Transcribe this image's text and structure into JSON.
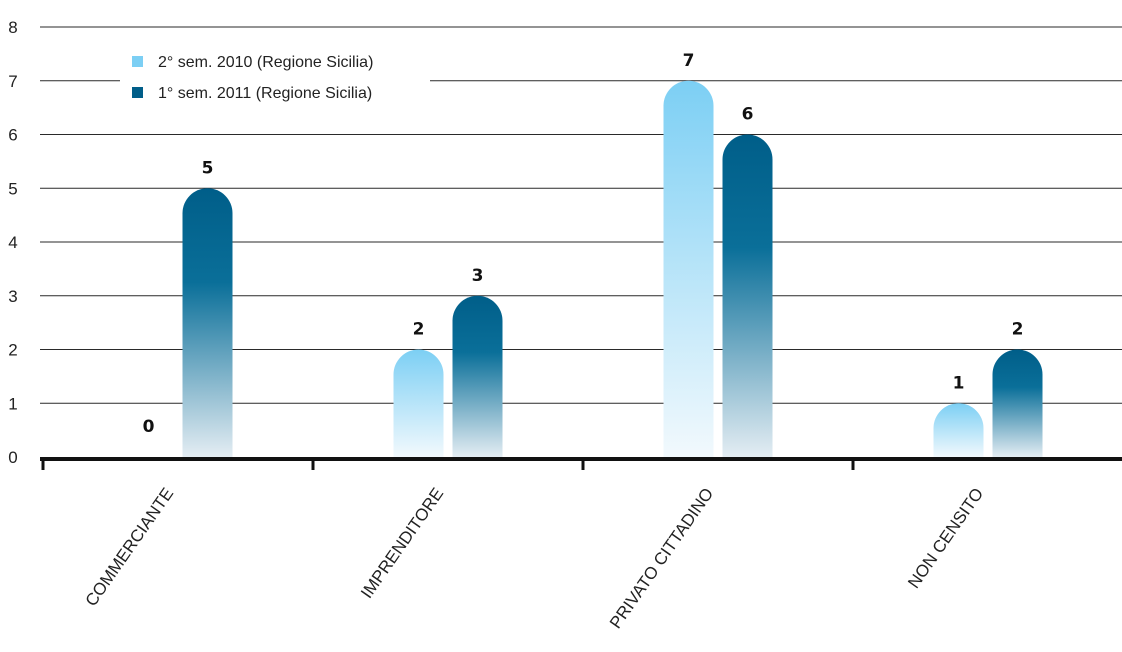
{
  "chart_data": {
    "type": "bar",
    "categories": [
      "COMMERCIANTE",
      "IMPRENDITORE",
      "PRIVATO CITTADINO",
      "NON CENSITO"
    ],
    "series": [
      {
        "name": "2° sem. 2010 (Regione Sicilia)",
        "values": [
          0,
          2,
          7,
          1
        ],
        "color": "#7ccff4"
      },
      {
        "name": "1° sem. 2011 (Regione Sicilia)",
        "values": [
          5,
          3,
          6,
          2
        ],
        "color": "#005e89"
      }
    ],
    "yticks": [
      "0",
      "1",
      "2",
      "3",
      "4",
      "5",
      "6",
      "7",
      "8"
    ],
    "ylim": [
      0,
      8
    ],
    "grid": true,
    "legend_position": "top-left",
    "data_labels": true
  }
}
